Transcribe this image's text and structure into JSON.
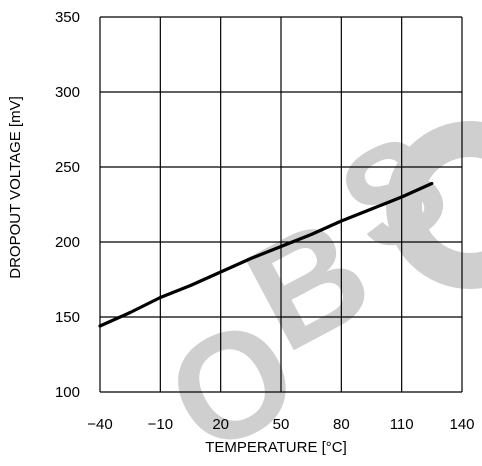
{
  "chart_data": {
    "type": "line",
    "xlabel": "TEMPERATURE [°C]",
    "ylabel": "DROPOUT VOLTAGE [mV]",
    "xlim": [
      -40,
      140
    ],
    "ylim": [
      100,
      350
    ],
    "x_ticks": [
      -40,
      -10,
      20,
      50,
      80,
      110,
      140
    ],
    "x_tick_labels": [
      "−40",
      "−10",
      "20",
      "50",
      "80",
      "110",
      "140"
    ],
    "y_ticks": [
      100,
      150,
      200,
      250,
      300,
      350
    ],
    "y_tick_labels": [
      "100",
      "150",
      "200",
      "250",
      "300",
      "350"
    ],
    "grid": true,
    "series": [
      {
        "x": [
          -40,
          -25,
          -10,
          5,
          20,
          35,
          50,
          65,
          80,
          95,
          110,
          125
        ],
        "values": [
          144,
          153,
          163,
          171,
          180,
          189,
          197,
          205,
          214,
          222,
          230,
          239
        ]
      }
    ],
    "line_color": "#000000",
    "grid_color": "#000000"
  },
  "watermark": {
    "text": "OBSOLETE",
    "color": "#cfcfcf"
  }
}
